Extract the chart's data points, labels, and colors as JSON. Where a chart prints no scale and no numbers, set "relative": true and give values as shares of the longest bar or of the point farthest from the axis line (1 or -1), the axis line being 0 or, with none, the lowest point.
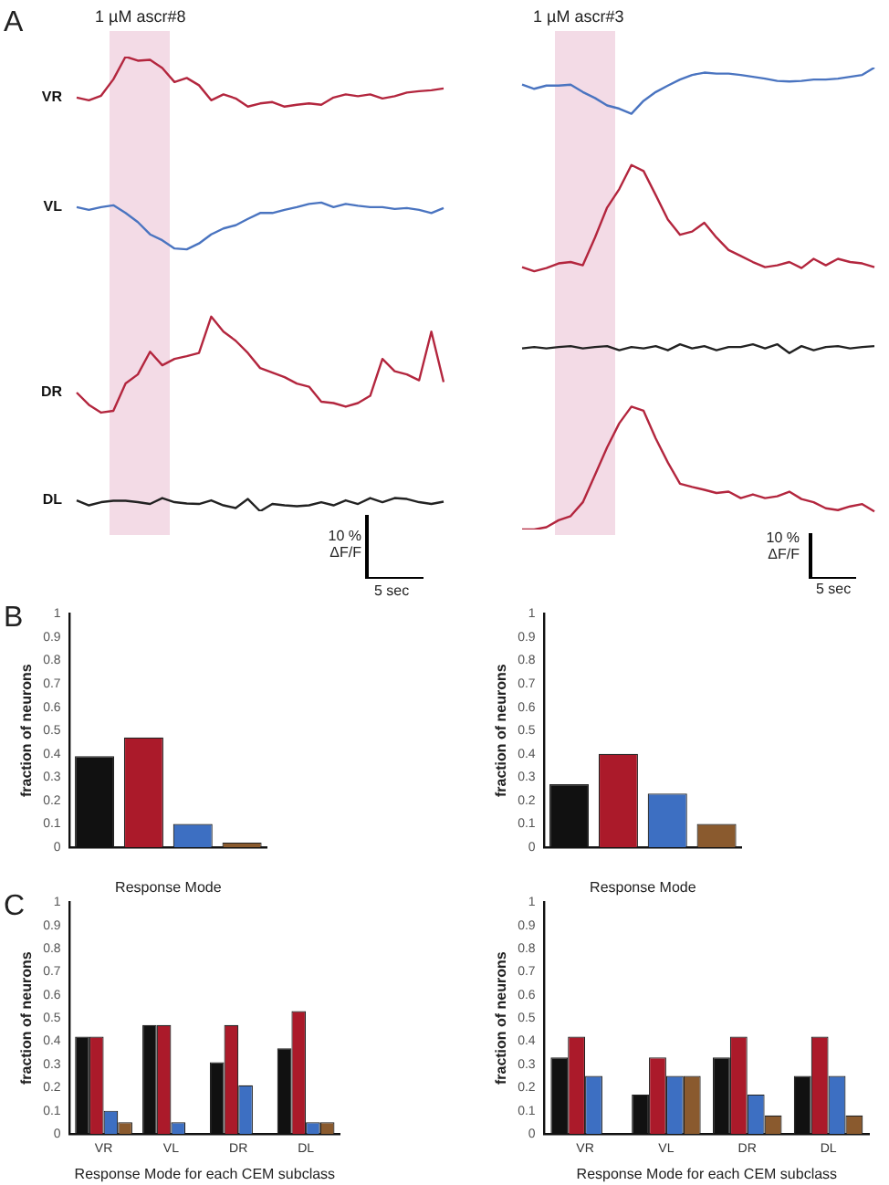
{
  "chart_data": [
    {
      "type": "line",
      "relative": true,
      "categories": [
        null,
        null,
        null,
        null,
        null,
        null,
        null,
        null,
        null,
        null,
        null,
        null,
        null,
        null,
        null,
        null,
        null,
        null,
        null,
        null,
        null,
        null,
        null,
        null,
        null,
        null,
        null,
        null,
        null,
        null,
        null
      ],
      "annotations": [
        "1 µM ascr#8",
        "A",
        "10 %\nΔF/F",
        "5 sec"
      ],
      "series": [
        {
          "name": "VR",
          "color": "#b3263e",
          "values": [
            0.91,
            0.904,
            0.914,
            0.95,
            1,
            0.991,
            0.993,
            0.975,
            0.944,
            0.953,
            0.937,
            0.904,
            0.917,
            0.908,
            0.89,
            0.897,
            0.9,
            0.89,
            0.894,
            0.897,
            0.894,
            0.91,
            0.917,
            0.913,
            0.917,
            0.908,
            0.913,
            0.921,
            0.924,
            0.926,
            0.93
          ]
        },
        {
          "name": "VL",
          "color": "#4a74c0",
          "values": [
            0.669,
            0.663,
            0.669,
            0.673,
            0.656,
            0.636,
            0.609,
            0.596,
            0.578,
            0.576,
            0.589,
            0.609,
            0.622,
            0.629,
            0.643,
            0.656,
            0.656,
            0.663,
            0.669,
            0.676,
            0.679,
            0.669,
            0.676,
            0.672,
            0.669,
            0.669,
            0.665,
            0.667,
            0.663,
            0.656,
            0.667
          ]
        },
        {
          "name": "DR",
          "color": "#b3263e",
          "values": [
            0.261,
            0.234,
            0.217,
            0.221,
            0.281,
            0.301,
            0.351,
            0.321,
            0.335,
            0.341,
            0.348,
            0.428,
            0.395,
            0.375,
            0.348,
            0.315,
            0.305,
            0.295,
            0.281,
            0.274,
            0.241,
            0.238,
            0.23,
            0.238,
            0.254,
            0.335,
            0.308,
            0.301,
            0.288,
            0.395,
            0.284
          ]
        },
        {
          "name": "DL",
          "color": "#222222",
          "values": [
            0.024,
            0.013,
            0.02,
            0.023,
            0.023,
            0.02,
            0.016,
            0.029,
            0.02,
            0.017,
            0.016,
            0.024,
            0.013,
            0.007,
            0.027,
            0,
            0.016,
            0.013,
            0.011,
            0.013,
            0.02,
            0.013,
            0.024,
            0.016,
            0.029,
            0.02,
            0.029,
            0.027,
            0.02,
            0.016,
            0.021
          ]
        }
      ]
    },
    {
      "type": "line",
      "relative": true,
      "categories": [
        null,
        null,
        null,
        null,
        null,
        null,
        null,
        null,
        null,
        null,
        null,
        null,
        null,
        null,
        null,
        null,
        null,
        null,
        null,
        null,
        null,
        null,
        null,
        null,
        null,
        null,
        null,
        null,
        null,
        null
      ],
      "annotations": [
        "1 µM ascr#3",
        "10 %\nΔF/F",
        "5 sec"
      ],
      "series": [
        {
          "color": "#4a74c0",
          "values": [
            0.963,
            0.954,
            0.961,
            0.961,
            0.963,
            0.947,
            0.934,
            0.918,
            0.911,
            0.9,
            0.928,
            0.947,
            0.961,
            0.974,
            0.984,
            0.989,
            0.987,
            0.987,
            0.984,
            0.98,
            0.976,
            0.971,
            0.97,
            0.971,
            0.974,
            0.974,
            0.976,
            0.98,
            0.984,
            1
          ]
        },
        {
          "color": "#b3263e",
          "values": [
            0.568,
            0.559,
            0.566,
            0.576,
            0.579,
            0.572,
            0.632,
            0.697,
            0.737,
            0.789,
            0.776,
            0.724,
            0.671,
            0.638,
            0.645,
            0.664,
            0.632,
            0.605,
            0.592,
            0.579,
            0.568,
            0.572,
            0.579,
            0.566,
            0.586,
            0.572,
            0.586,
            0.579,
            0.576,
            0.568
          ]
        },
        {
          "color": "#222222",
          "values": [
            0.392,
            0.395,
            0.392,
            0.395,
            0.397,
            0.392,
            0.395,
            0.397,
            0.388,
            0.395,
            0.392,
            0.397,
            0.388,
            0.401,
            0.392,
            0.397,
            0.388,
            0.395,
            0.395,
            0.401,
            0.392,
            0.401,
            0.382,
            0.397,
            0.388,
            0.395,
            0.397,
            0.392,
            0.395,
            0.397
          ]
        },
        {
          "color": "#b3263e",
          "values": [
            0,
            0,
            0.005,
            0.02,
            0.029,
            0.059,
            0.118,
            0.178,
            0.23,
            0.266,
            0.257,
            0.197,
            0.145,
            0.099,
            0.092,
            0.086,
            0.079,
            0.082,
            0.068,
            0.076,
            0.068,
            0.072,
            0.082,
            0.066,
            0.059,
            0.046,
            0.042,
            0.05,
            0.055,
            0.039
          ]
        }
      ]
    },
    {
      "type": "bar",
      "xlabel": "Response Mode",
      "ylabel": "fraction of neurons",
      "ylim": [
        0,
        1
      ],
      "yticks": [
        0,
        0.1,
        0.2,
        0.3,
        0.4,
        0.5,
        0.6,
        0.7,
        0.8,
        0.9,
        1
      ],
      "annotations": [
        "B"
      ],
      "categories": [
        null,
        null,
        null,
        null
      ],
      "values": [
        0.39,
        0.47,
        0.1,
        0.02
      ],
      "colors": [
        "#111111",
        "#ab1a2a",
        "#3d6fc2",
        "#8a5a2e"
      ]
    },
    {
      "type": "bar",
      "xlabel": "Response Mode",
      "ylabel": "fraction of neurons",
      "ylim": [
        0,
        1
      ],
      "yticks": [
        0,
        0.1,
        0.2,
        0.3,
        0.4,
        0.5,
        0.6,
        0.7,
        0.8,
        0.9,
        1
      ],
      "categories": [
        null,
        null,
        null,
        null
      ],
      "values": [
        0.27,
        0.4,
        0.23,
        0.1
      ],
      "colors": [
        "#111111",
        "#ab1a2a",
        "#3d6fc2",
        "#8a5a2e"
      ]
    },
    {
      "type": "bar",
      "xlabel": "Response Mode for each CEM subclass",
      "ylabel": "fraction of neurons",
      "ylim": [
        0,
        1
      ],
      "yticks": [
        0,
        0.1,
        0.2,
        0.3,
        0.4,
        0.5,
        0.6,
        0.7,
        0.8,
        0.9,
        1
      ],
      "annotations": [
        "C"
      ],
      "categories": [
        "VR",
        "VL",
        "DR",
        "DL"
      ],
      "series": [
        {
          "color": "#111111",
          "values": [
            0.42,
            0.47,
            0.31,
            0.37
          ]
        },
        {
          "color": "#ab1a2a",
          "values": [
            0.42,
            0.47,
            0.47,
            0.53
          ]
        },
        {
          "color": "#3d6fc2",
          "values": [
            0.1,
            0.05,
            0.21,
            0.05
          ]
        },
        {
          "color": "#8a5a2e",
          "values": [
            0.05,
            0,
            0,
            0.05
          ]
        }
      ]
    },
    {
      "type": "bar",
      "xlabel": "Response Mode for each CEM subclass",
      "ylabel": "fraction of neurons",
      "ylim": [
        0,
        1
      ],
      "yticks": [
        0,
        0.1,
        0.2,
        0.3,
        0.4,
        0.5,
        0.6,
        0.7,
        0.8,
        0.9,
        1
      ],
      "categories": [
        "VR",
        "VL",
        "DR",
        "DL"
      ],
      "series": [
        {
          "color": "#111111",
          "values": [
            0.33,
            0.17,
            0.33,
            0.25
          ]
        },
        {
          "color": "#ab1a2a",
          "values": [
            0.42,
            0.33,
            0.42,
            0.42
          ]
        },
        {
          "color": "#3d6fc2",
          "values": [
            0.25,
            0.25,
            0.17,
            0.25
          ]
        },
        {
          "color": "#8a5a2e",
          "values": [
            0,
            0.25,
            0.08,
            0.08
          ]
        }
      ]
    }
  ]
}
